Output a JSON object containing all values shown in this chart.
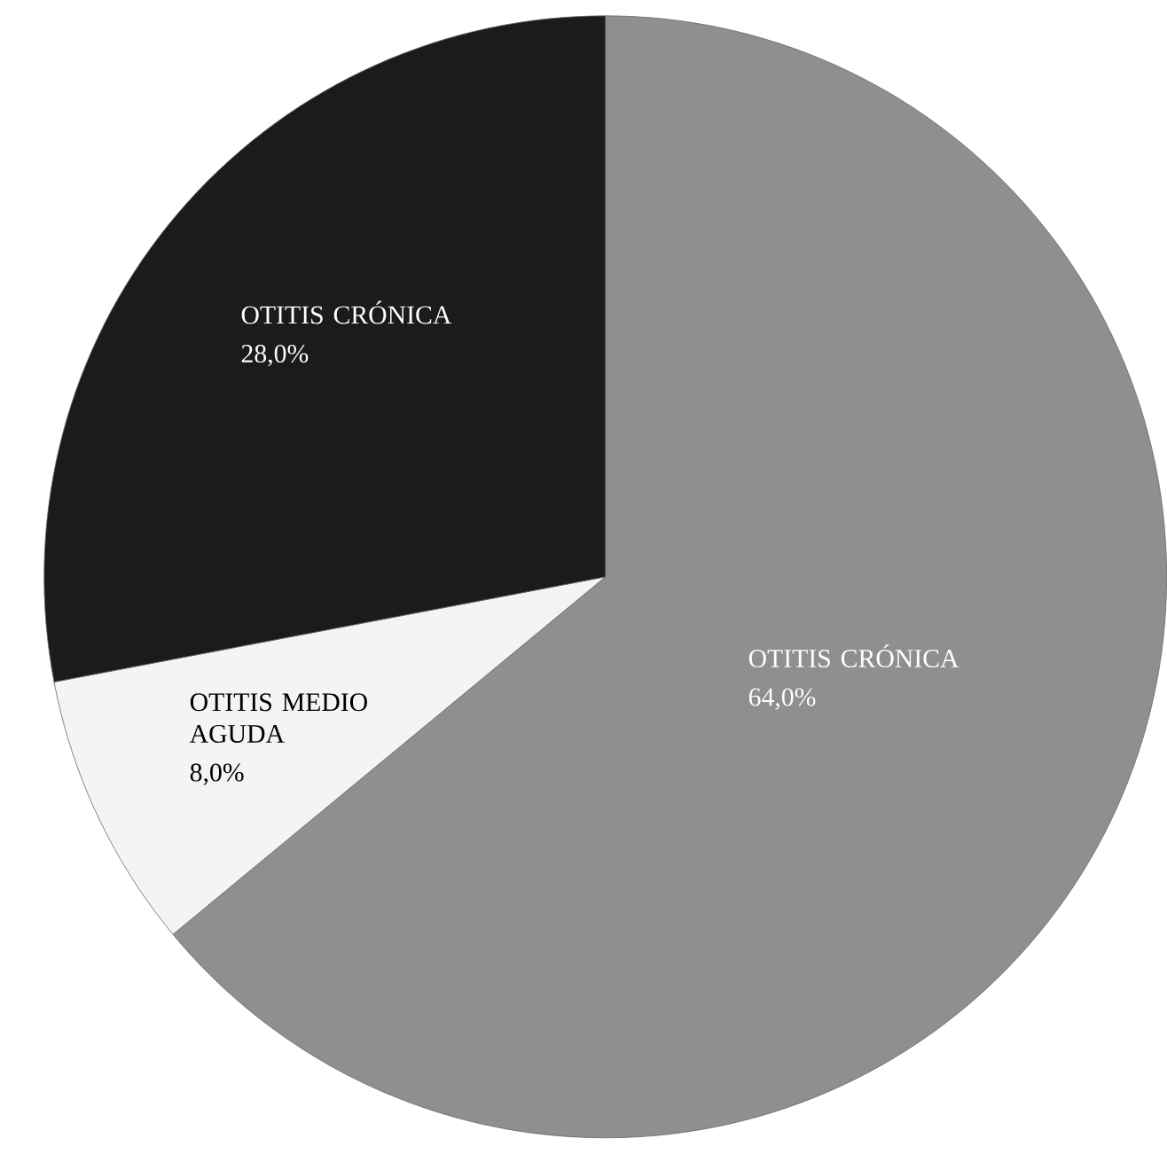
{
  "chart_data": {
    "type": "pie",
    "categories": [
      "OTITIS CRÓNICA",
      "OTITIS MEDIO AGUDA",
      "OTITIS CRÓNICA"
    ],
    "values": [
      64,
      8,
      28
    ],
    "value_labels": [
      "64,0%",
      "8,0%",
      "28,0%"
    ],
    "colors": [
      "#8f8f8f",
      "#f4f4f4",
      "#1b1b1b"
    ]
  }
}
